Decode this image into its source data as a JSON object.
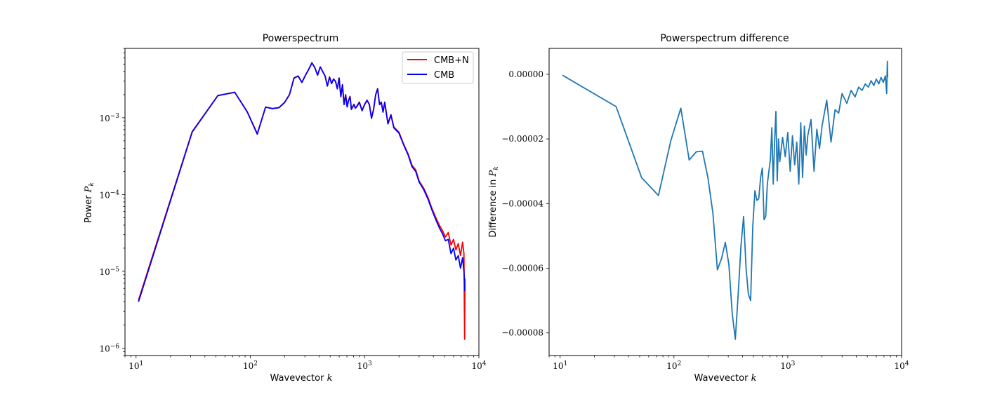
{
  "chart_data": [
    {
      "type": "line",
      "title": "Powerspectrum",
      "xlabel": "Wavevector k",
      "ylabel": "Power P_k",
      "xscale": "log",
      "yscale": "log",
      "xlim": [
        8,
        10000
      ],
      "ylim": [
        8e-07,
        0.008
      ],
      "xticks": [
        {
          "value": 10,
          "base": "10",
          "exp": "1"
        },
        {
          "value": 100,
          "base": "10",
          "exp": "2"
        },
        {
          "value": 1000,
          "base": "10",
          "exp": "3"
        },
        {
          "value": 10000,
          "base": "10",
          "exp": "4"
        }
      ],
      "yticks": [
        {
          "value": 1e-06,
          "base": "10",
          "exp": "−6"
        },
        {
          "value": 1e-05,
          "base": "10",
          "exp": "−5"
        },
        {
          "value": 0.0001,
          "base": "10",
          "exp": "−4"
        },
        {
          "value": 0.001,
          "base": "10",
          "exp": "−3"
        }
      ],
      "grid": false,
      "legend_position": "top-right",
      "series": [
        {
          "name": "CMB+N",
          "color": "#ff0000",
          "x": [
            10.5,
            31,
            52,
            73,
            94,
            115,
            136,
            157,
            178,
            199,
            220,
            241,
            262,
            283,
            304,
            325,
            346,
            367,
            388,
            409,
            430,
            451,
            472,
            493,
            514,
            535,
            556,
            577,
            598,
            619,
            640,
            661,
            682,
            703,
            724,
            745,
            766,
            787,
            808,
            829,
            850,
            900,
            950,
            1000,
            1050,
            1100,
            1150,
            1200,
            1250,
            1300,
            1350,
            1400,
            1450,
            1500,
            1600,
            1700,
            1800,
            1900,
            2000,
            2200,
            2400,
            2600,
            2800,
            3000,
            3300,
            3600,
            3900,
            4200,
            4500,
            4800,
            5100,
            5400,
            5700,
            6000,
            6300,
            6600,
            6900,
            7200,
            7400,
            7500,
            7550
          ],
          "y": [
            4.2e-06,
            0.00066,
            0.00195,
            0.00215,
            0.0012,
            0.00062,
            0.00138,
            0.00132,
            0.00136,
            0.00158,
            0.002,
            0.0033,
            0.0035,
            0.0029,
            0.0036,
            0.0043,
            0.0052,
            0.0045,
            0.0036,
            0.0046,
            0.004,
            0.0035,
            0.0026,
            0.0034,
            0.0028,
            0.0032,
            0.003,
            0.0024,
            0.0033,
            0.0019,
            0.0027,
            0.0015,
            0.002,
            0.0014,
            0.0017,
            0.0019,
            0.0013,
            0.0014,
            0.0015,
            0.00135,
            0.0014,
            0.0016,
            0.00125,
            0.0015,
            0.0017,
            0.0015,
            0.001,
            0.0013,
            0.002,
            0.0024,
            0.0015,
            0.0016,
            0.0012,
            0.0016,
            0.00085,
            0.0011,
            0.00076,
            0.0007,
            0.00065,
            0.00045,
            0.00034,
            0.00024,
            0.00021,
            0.00015,
            0.00012,
            9e-05,
            6.5e-05,
            5e-05,
            4e-05,
            3.4e-05,
            2.8e-05,
            3.2e-05,
            2.2e-05,
            2.6e-05,
            1.9e-05,
            2.3e-05,
            1.6e-05,
            2.4e-05,
            1.7e-05,
            1.3e-06,
            8e-06
          ]
        },
        {
          "name": "CMB",
          "color": "#0000ff",
          "x": [
            10.5,
            31,
            52,
            73,
            94,
            115,
            136,
            157,
            178,
            199,
            220,
            241,
            262,
            283,
            304,
            325,
            346,
            367,
            388,
            409,
            430,
            451,
            472,
            493,
            514,
            535,
            556,
            577,
            598,
            619,
            640,
            661,
            682,
            703,
            724,
            745,
            766,
            787,
            808,
            829,
            850,
            900,
            950,
            1000,
            1050,
            1100,
            1150,
            1200,
            1250,
            1300,
            1350,
            1400,
            1450,
            1500,
            1600,
            1700,
            1800,
            1900,
            2000,
            2200,
            2400,
            2600,
            2800,
            3000,
            3300,
            3600,
            3900,
            4200,
            4500,
            4800,
            5100,
            5400,
            5700,
            6000,
            6300,
            6600,
            6900,
            7200,
            7400,
            7500,
            7550
          ],
          "y": [
            4e-06,
            0.00065,
            0.00194,
            0.00214,
            0.00119,
            0.00061,
            0.00137,
            0.00131,
            0.00135,
            0.00157,
            0.00199,
            0.00328,
            0.00348,
            0.00288,
            0.00358,
            0.00428,
            0.00518,
            0.00448,
            0.00358,
            0.00458,
            0.00398,
            0.00348,
            0.00258,
            0.00338,
            0.00278,
            0.00318,
            0.00298,
            0.00238,
            0.00328,
            0.00188,
            0.00268,
            0.00148,
            0.00198,
            0.00138,
            0.00168,
            0.00188,
            0.00128,
            0.00138,
            0.00148,
            0.00133,
            0.00138,
            0.00158,
            0.00123,
            0.00148,
            0.00168,
            0.00148,
            0.00098,
            0.00128,
            0.00198,
            0.00238,
            0.00148,
            0.00158,
            0.00118,
            0.00158,
            0.00083,
            0.00108,
            0.00074,
            0.00068,
            0.00063,
            0.00044,
            0.00033,
            0.00023,
            0.0002,
            0.000145,
            0.000115,
            8.6e-05,
            6.2e-05,
            4.7e-05,
            3.7e-05,
            3.1e-05,
            2.5e-05,
            2.6e-05,
            1.7e-05,
            2e-05,
            1.4e-05,
            1.6e-05,
            1.1e-05,
            1.5e-05,
            1e-05,
            7e-06,
            5.5e-06
          ]
        }
      ]
    },
    {
      "type": "line",
      "title": "Powerspectrum difference",
      "xlabel": "Wavevector k",
      "ylabel": "Difference in P_k",
      "xscale": "log",
      "yscale": "linear",
      "xlim": [
        8,
        10000
      ],
      "ylim": [
        -8.7e-05,
        8e-06
      ],
      "xticks": [
        {
          "value": 10,
          "base": "10",
          "exp": "1"
        },
        {
          "value": 100,
          "base": "10",
          "exp": "2"
        },
        {
          "value": 1000,
          "base": "10",
          "exp": "3"
        },
        {
          "value": 10000,
          "base": "10",
          "exp": "4"
        }
      ],
      "yticks": [
        {
          "value": 0.0,
          "label": "0.00000"
        },
        {
          "value": -2e-05,
          "label": "−0.00002"
        },
        {
          "value": -4e-05,
          "label": "−0.00004"
        },
        {
          "value": -6e-05,
          "label": "−0.00006"
        },
        {
          "value": -8e-05,
          "label": "−0.00008"
        }
      ],
      "grid": false,
      "series": [
        {
          "color": "#1f77b4",
          "x": [
            10.5,
            31,
            52,
            73,
            94,
            115,
            136,
            157,
            178,
            199,
            220,
            241,
            262,
            283,
            304,
            325,
            346,
            367,
            388,
            409,
            430,
            451,
            472,
            493,
            514,
            535,
            556,
            577,
            598,
            619,
            640,
            661,
            682,
            703,
            724,
            745,
            766,
            787,
            808,
            829,
            850,
            900,
            950,
            1000,
            1050,
            1100,
            1150,
            1200,
            1250,
            1300,
            1350,
            1400,
            1450,
            1500,
            1600,
            1700,
            1800,
            1900,
            2000,
            2200,
            2400,
            2600,
            2800,
            3000,
            3300,
            3600,
            3900,
            4200,
            4500,
            4800,
            5100,
            5400,
            5700,
            6000,
            6300,
            6600,
            6900,
            7200,
            7400,
            7500,
            7550
          ],
          "y": [
            -3e-07,
            -1e-05,
            -3.2e-05,
            -3.75e-05,
            -2.05e-05,
            -1.05e-05,
            -2.65e-05,
            -2.4e-05,
            -2.38e-05,
            -3.2e-05,
            -4.3e-05,
            -6.05e-05,
            -5.7e-05,
            -5.2e-05,
            -5.9e-05,
            -7.4e-05,
            -8.2e-05,
            -6.8e-05,
            -5.3e-05,
            -4.4e-05,
            -6e-05,
            -6.8e-05,
            -7e-05,
            -4.7e-05,
            -3.6e-05,
            -3.9e-05,
            -3.85e-05,
            -3.2e-05,
            -2.9e-05,
            -4.5e-05,
            -4.4e-05,
            -3.4e-05,
            -3e-05,
            -2.65e-05,
            -1.65e-05,
            -3.4e-05,
            -2.1e-05,
            -1.15e-05,
            -3.3e-05,
            -2e-05,
            -2.7e-05,
            -1.95e-05,
            -2.55e-05,
            -1.8e-05,
            -3e-05,
            -1.9e-05,
            -2.8e-05,
            -2.1e-05,
            -3.4e-05,
            -1.5e-05,
            -3.2e-05,
            -1.6e-05,
            -2.5e-05,
            -1.9e-05,
            -1.4e-05,
            -3e-05,
            -1.7e-05,
            -2.3e-05,
            -1.6e-05,
            -8e-06,
            -2.1e-05,
            -1.1e-05,
            -1.2e-05,
            -6e-06,
            -9e-06,
            -5e-06,
            -7e-06,
            -4e-06,
            -5e-06,
            -3e-06,
            -4e-06,
            -2e-06,
            -3.5e-06,
            -1.5e-06,
            -3e-06,
            -1e-06,
            -2.5e-06,
            -5e-07,
            -6e-06,
            4e-06,
            -1e-06
          ]
        }
      ]
    }
  ]
}
